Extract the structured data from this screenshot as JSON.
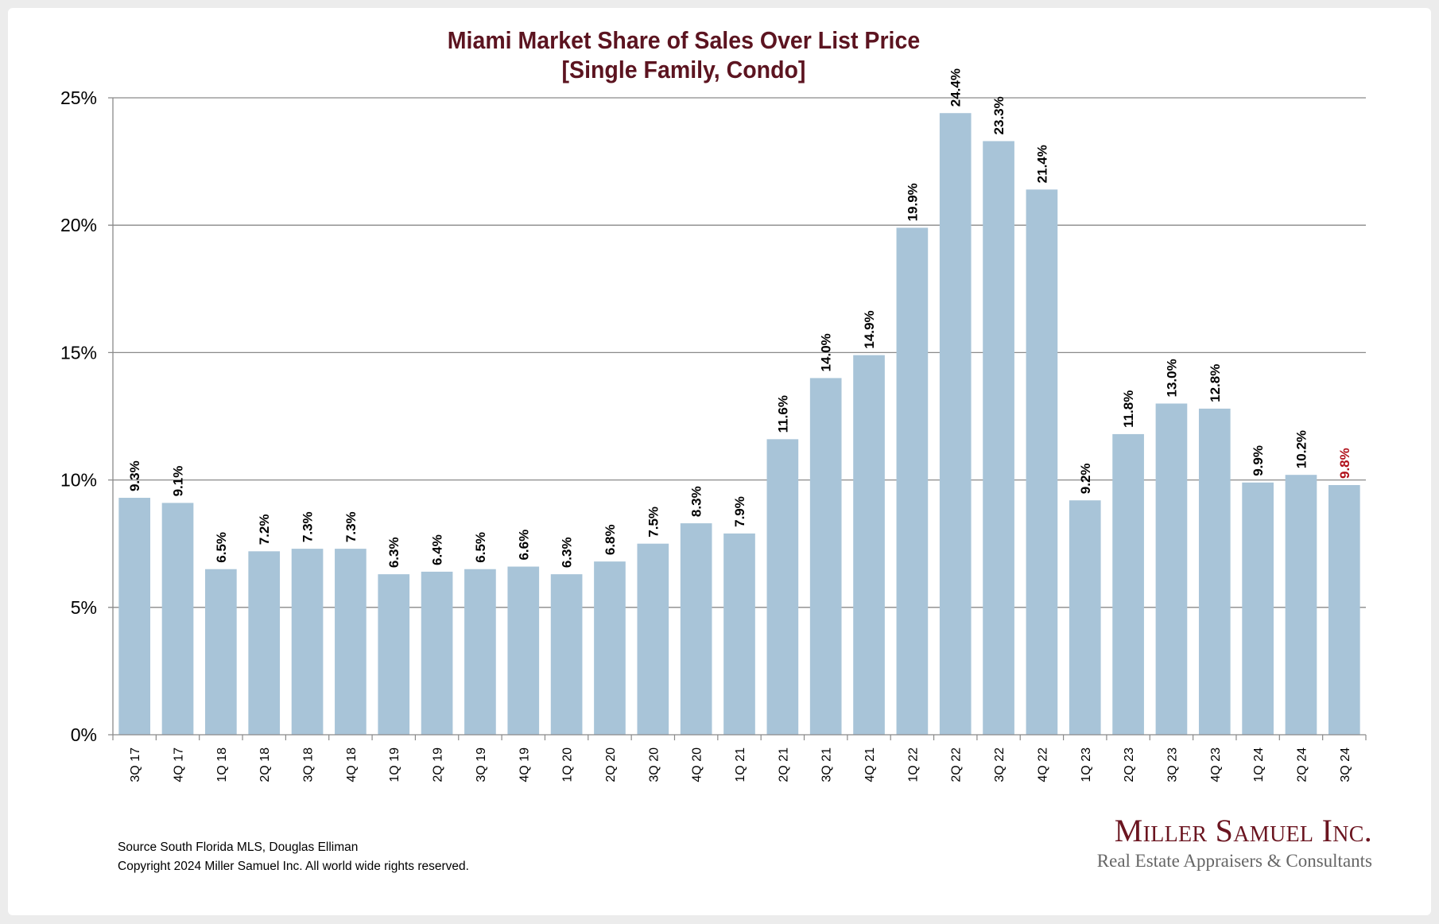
{
  "chart_data": {
    "type": "bar",
    "title": "Miami Market Share of Sales Over List Price",
    "subtitle": "[Single Family, Condo]",
    "xlabel": "",
    "ylabel": "",
    "ylim": [
      0,
      25
    ],
    "yticks": [
      0,
      5,
      10,
      15,
      20,
      25
    ],
    "ytick_labels": [
      "0%",
      "5%",
      "10%",
      "15%",
      "20%",
      "25%"
    ],
    "grid": true,
    "categories": [
      "3Q 17",
      "4Q 17",
      "1Q 18",
      "2Q 18",
      "3Q 18",
      "4Q 18",
      "1Q 19",
      "2Q 19",
      "3Q 19",
      "4Q 19",
      "1Q 20",
      "2Q 20",
      "3Q 20",
      "4Q 20",
      "1Q 21",
      "2Q 21",
      "3Q 21",
      "4Q 21",
      "1Q 22",
      "2Q 22",
      "3Q 22",
      "4Q 22",
      "1Q 23",
      "2Q 23",
      "3Q 23",
      "4Q 23",
      "1Q 24",
      "2Q 24",
      "3Q 24"
    ],
    "values": [
      9.3,
      9.1,
      6.5,
      7.2,
      7.3,
      7.3,
      6.3,
      6.4,
      6.5,
      6.6,
      6.3,
      6.8,
      7.5,
      8.3,
      7.9,
      11.6,
      14.0,
      14.9,
      19.9,
      24.4,
      23.3,
      21.4,
      9.2,
      11.8,
      13.0,
      12.8,
      9.9,
      10.2,
      9.8
    ],
    "data_labels": [
      "9.3%",
      "9.1%",
      "6.5%",
      "7.2%",
      "7.3%",
      "7.3%",
      "6.3%",
      "6.4%",
      "6.5%",
      "6.6%",
      "6.3%",
      "6.8%",
      "7.5%",
      "8.3%",
      "7.9%",
      "11.6%",
      "14.0%",
      "14.9%",
      "19.9%",
      "24.4%",
      "23.3%",
      "21.4%",
      "9.2%",
      "11.8%",
      "13.0%",
      "12.8%",
      "9.9%",
      "10.2%",
      "9.8%"
    ],
    "highlighted_index": 28,
    "colors": {
      "bar": "#a8c4d8",
      "label": "#000000",
      "highlight_label": "#b0101a",
      "grid": "#8a8a8a",
      "title": "#5c1420"
    },
    "legend": "none"
  },
  "footer": {
    "source": "Source South Florida MLS, Douglas Elliman",
    "copyright": "Copyright 2024 Miller Samuel Inc.  All world wide rights reserved."
  },
  "logo": {
    "name": "Miller Samuel Inc.",
    "tagline": "Real Estate Appraisers & Consultants"
  }
}
